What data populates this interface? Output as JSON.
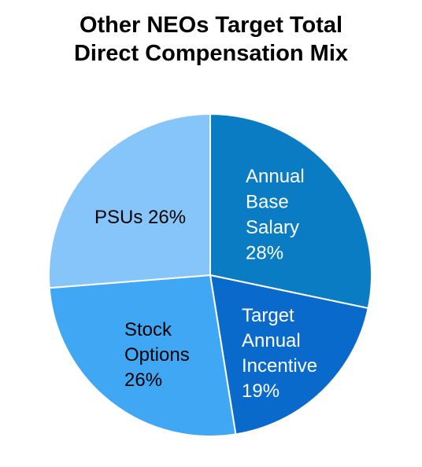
{
  "chart_data": {
    "type": "pie",
    "title_lines": [
      "Other NEOs Target Total",
      "Direct Compensation Mix"
    ],
    "slices": [
      {
        "label_lines": [
          "Annual",
          "Base",
          "Salary",
          "28%"
        ],
        "value": 28,
        "color": "#0A7CC4",
        "label_color": "#ffffff"
      },
      {
        "label_lines": [
          "Target",
          "Annual",
          "Incentive",
          "19%"
        ],
        "value": 19,
        "color": "#0A6ACB",
        "label_color": "#ffffff"
      },
      {
        "label_lines": [
          "Stock",
          "Options",
          "26%"
        ],
        "value": 26,
        "color": "#3FA7F4",
        "label_color": "#000000"
      },
      {
        "label_lines": [
          "PSUs 26%"
        ],
        "value": 26,
        "color": "#85C5F9",
        "label_color": "#000000"
      }
    ],
    "legend": "none"
  }
}
